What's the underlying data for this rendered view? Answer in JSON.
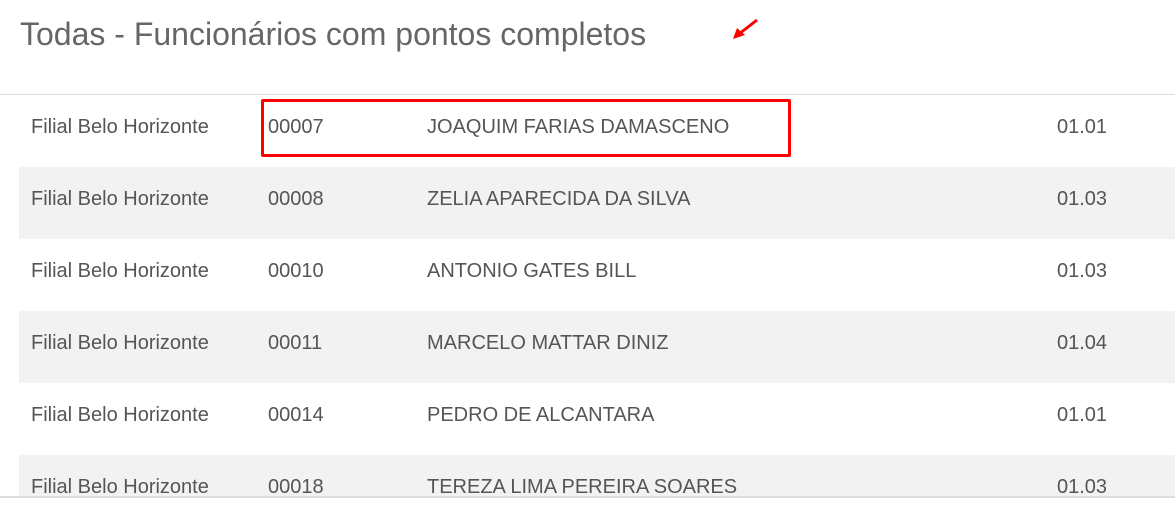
{
  "header": {
    "title": "Todas - Funcionários com pontos completos"
  },
  "colors": {
    "annotation": "#ff0000",
    "stripe": "#f2f2f2",
    "text": "#555555"
  },
  "rows": [
    {
      "branch": "Filial Belo Horizonte",
      "code": "00007",
      "name": "JOAQUIM FARIAS DAMASCENO",
      "value": "01.01"
    },
    {
      "branch": "Filial Belo Horizonte",
      "code": "00008",
      "name": "ZELIA APARECIDA DA SILVA",
      "value": "01.03"
    },
    {
      "branch": "Filial Belo Horizonte",
      "code": "00010",
      "name": "ANTONIO GATES BILL",
      "value": "01.03"
    },
    {
      "branch": "Filial Belo Horizonte",
      "code": "00011",
      "name": "MARCELO MATTAR DINIZ",
      "value": "01.04"
    },
    {
      "branch": "Filial Belo Horizonte",
      "code": "00014",
      "name": "PEDRO DE ALCANTARA",
      "value": "01.01"
    },
    {
      "branch": "Filial Belo Horizonte",
      "code": "00018",
      "name": "TEREZA LIMA PEREIRA SOARES",
      "value": "01.03"
    }
  ]
}
